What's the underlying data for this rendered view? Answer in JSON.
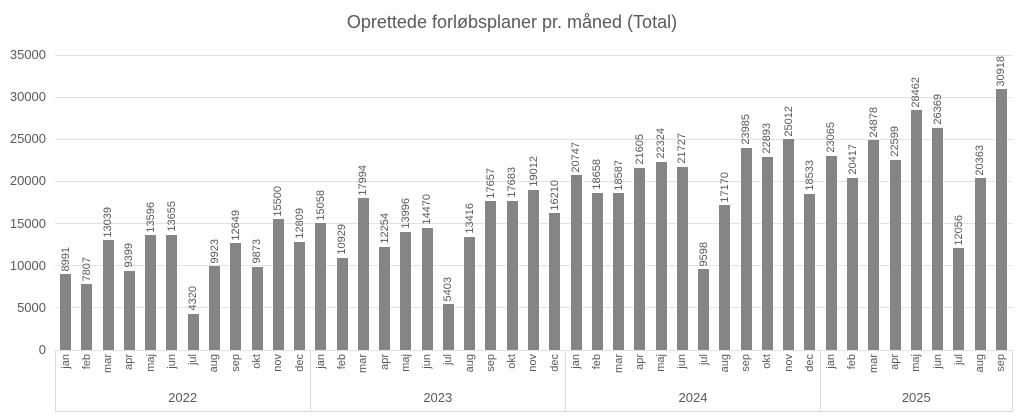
{
  "chart_data": {
    "type": "bar",
    "title": "Oprettede forløbsplaner pr. måned (Total)",
    "xlabel": "",
    "ylabel": "",
    "ylim": [
      0,
      35000
    ],
    "yticks": [
      0,
      5000,
      10000,
      15000,
      20000,
      25000,
      30000,
      35000
    ],
    "grid": true,
    "legend": "none",
    "data_labels": true,
    "data_label_rotation": "vertical",
    "bar_color": "#858585",
    "grid_color": "#e2e2e2",
    "text_color": "#595959",
    "separator_color": "#d9d9d9",
    "groups": [
      {
        "year": "2022",
        "months": [
          "jan",
          "feb",
          "mar",
          "apr",
          "maj",
          "jun",
          "jul",
          "aug",
          "sep",
          "okt",
          "nov",
          "dec"
        ],
        "values": [
          8991,
          7807,
          13039,
          9399,
          13596,
          13655,
          4320,
          9923,
          12649,
          9873,
          15500,
          12809
        ]
      },
      {
        "year": "2023",
        "months": [
          "jan",
          "feb",
          "mar",
          "apr",
          "maj",
          "jun",
          "jul",
          "aug",
          "sep",
          "okt",
          "nov",
          "dec"
        ],
        "values": [
          15058,
          10929,
          17994,
          12254,
          13996,
          14470,
          5403,
          13416,
          17657,
          17683,
          19012,
          16210
        ]
      },
      {
        "year": "2024",
        "months": [
          "jan",
          "feb",
          "mar",
          "apr",
          "maj",
          "jun",
          "jul",
          "aug",
          "sep",
          "okt",
          "nov",
          "dec"
        ],
        "values": [
          20747,
          18658,
          18587,
          21605,
          22324,
          21727,
          9598,
          17170,
          23985,
          22893,
          25012,
          18533
        ]
      },
      {
        "year": "2025",
        "months": [
          "jan",
          "feb",
          "mar",
          "apr",
          "maj",
          "jun",
          "jul",
          "aug",
          "sep"
        ],
        "values": [
          23065,
          20417,
          24878,
          22599,
          28462,
          26369,
          12056,
          20363,
          30918
        ]
      }
    ]
  }
}
